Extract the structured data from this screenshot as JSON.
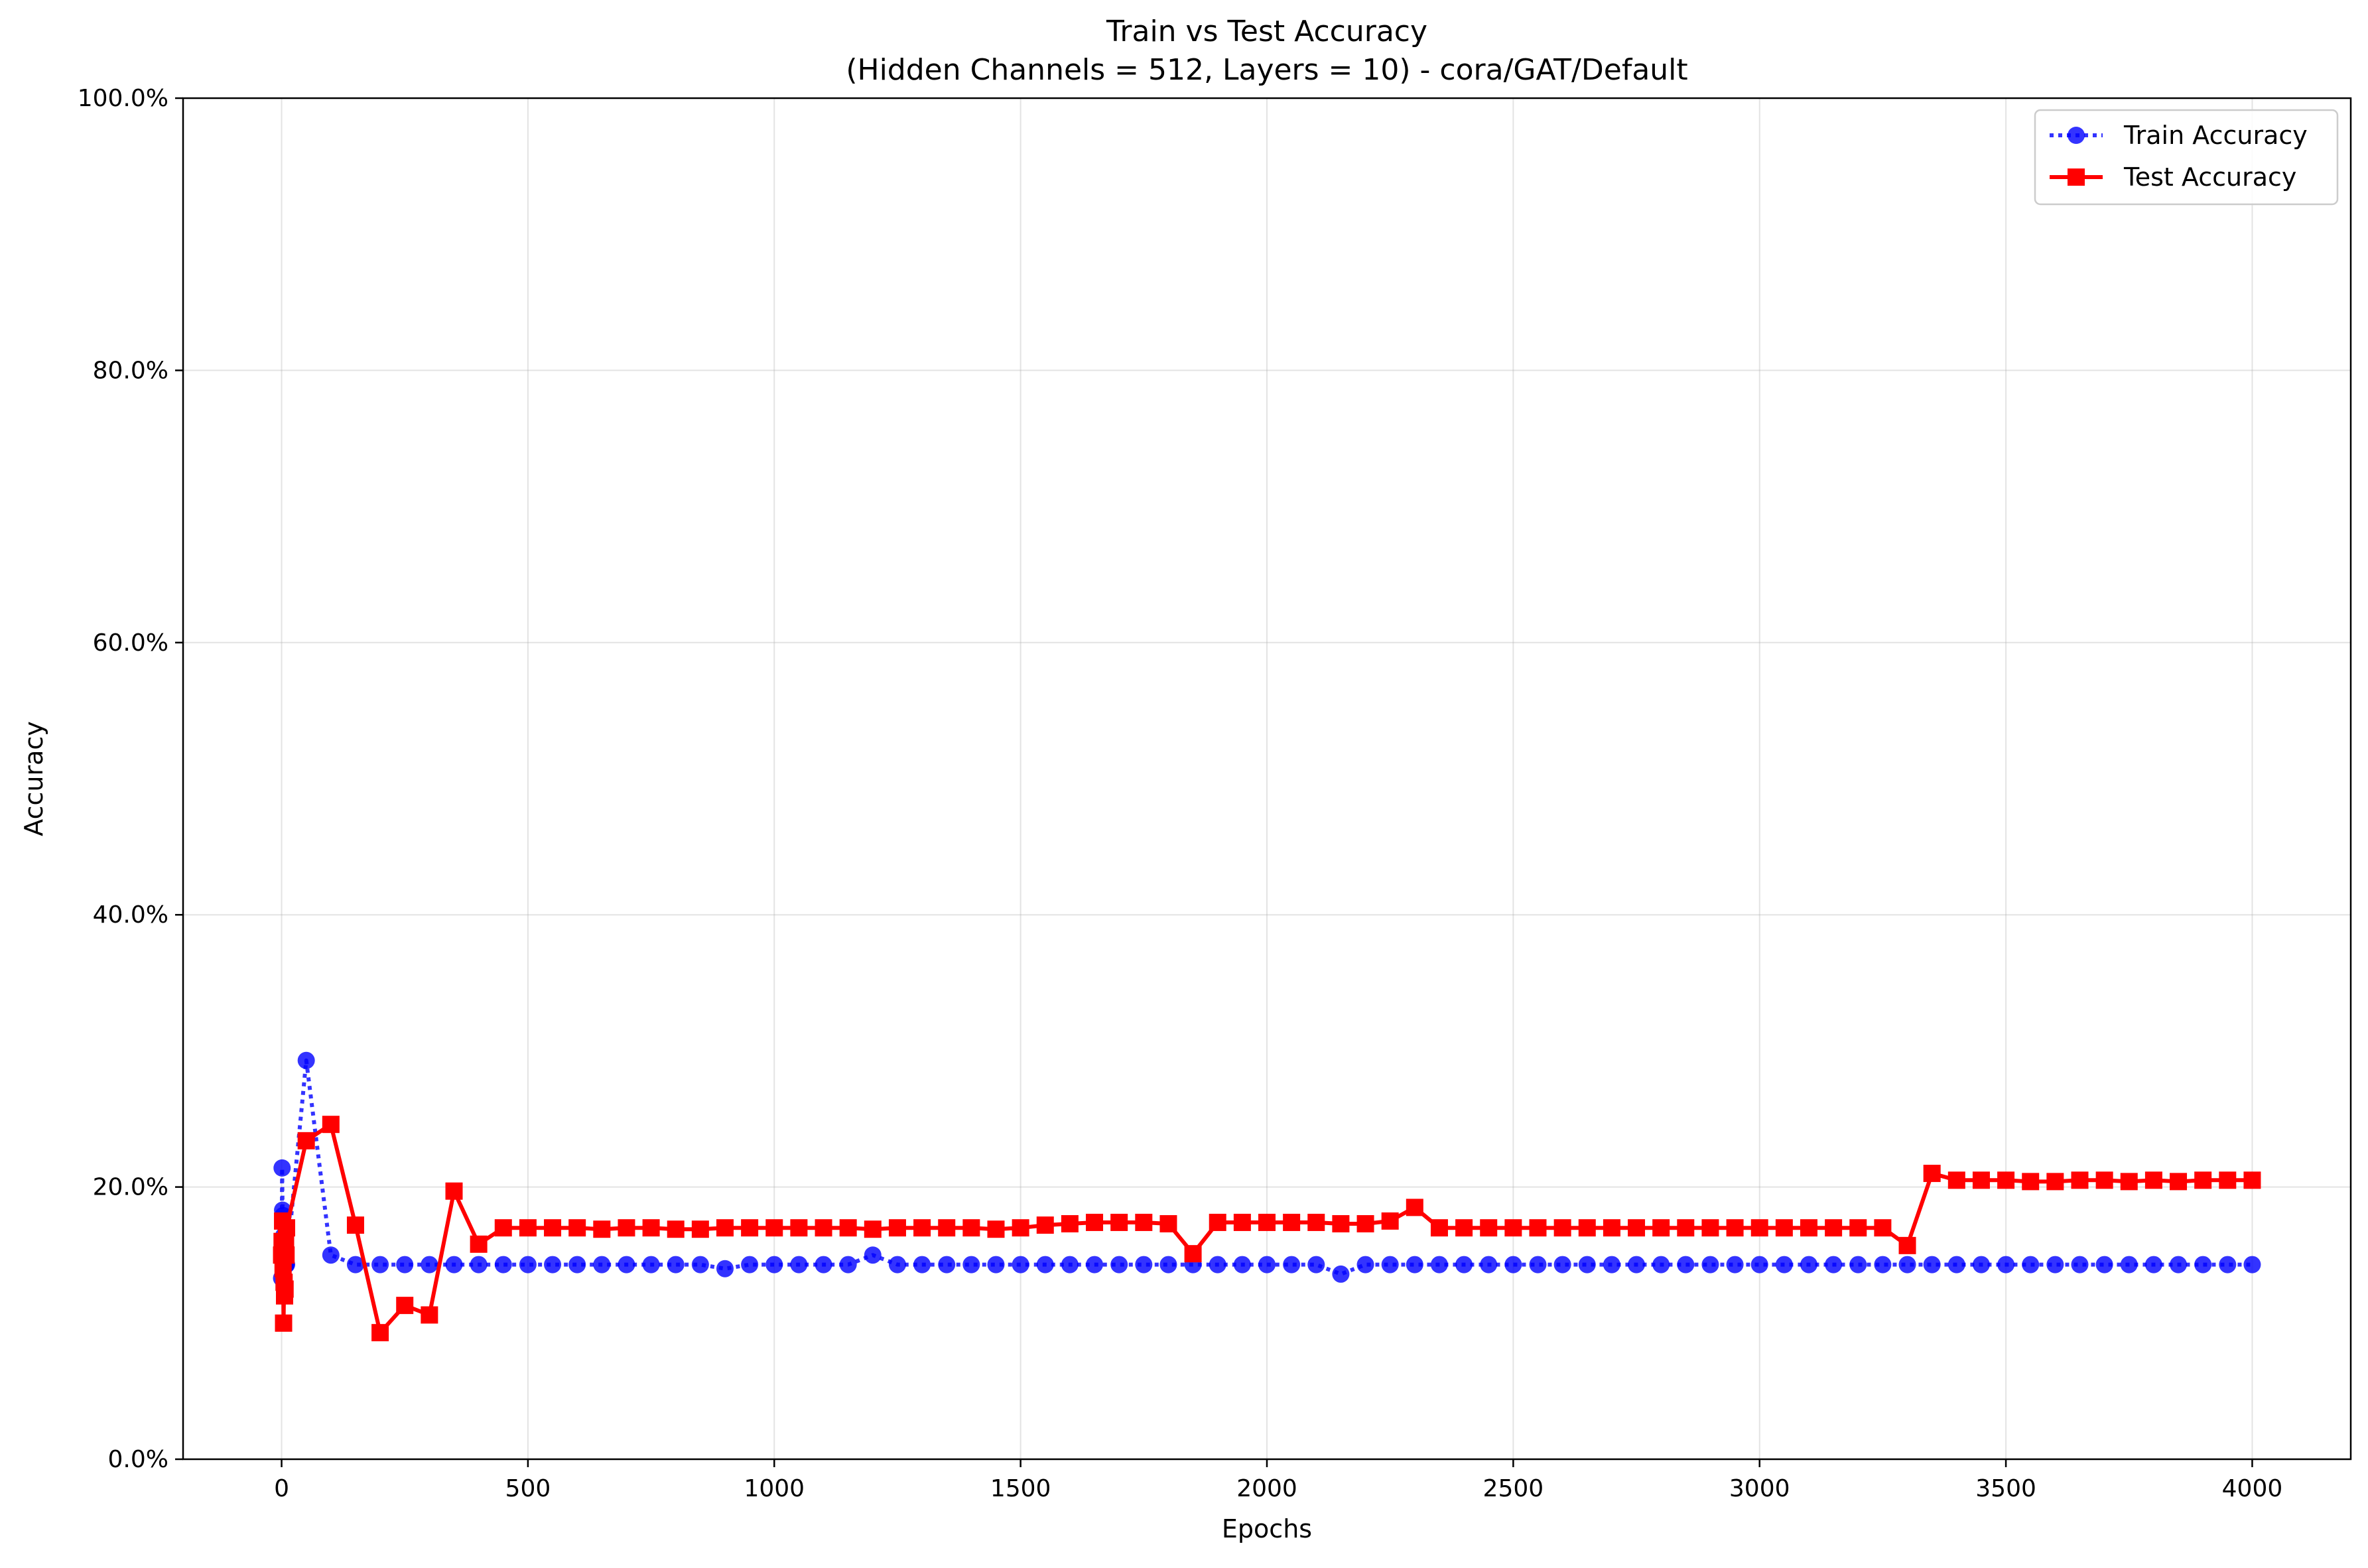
{
  "chart_data": {
    "type": "line",
    "title": "Train vs Test Accuracy",
    "subtitle": "(Hidden Channels = 512, Layers = 10) - cora/GAT/Default",
    "xlabel": "Epochs",
    "ylabel": "Accuracy",
    "xlim": [
      -200,
      4200
    ],
    "ylim": [
      0,
      1
    ],
    "x_ticks": [
      0,
      500,
      1000,
      1500,
      2000,
      2500,
      3000,
      3500,
      4000
    ],
    "x_tick_labels": [
      "0",
      "500",
      "1000",
      "1500",
      "2000",
      "2500",
      "3000",
      "3500",
      "4000"
    ],
    "y_ticks": [
      0,
      0.2,
      0.4,
      0.6,
      0.8,
      1.0
    ],
    "y_tick_labels": [
      "0.0%",
      "20.0%",
      "40.0%",
      "60.0%",
      "80.0%",
      "100.0%"
    ],
    "grid": true,
    "legend_position": "top-right",
    "series": [
      {
        "name": "Train Accuracy",
        "color": "#0000ff",
        "line_style": "dotted",
        "marker": "circle",
        "x": [
          0,
          1,
          2,
          3,
          4,
          5,
          6,
          7,
          8,
          9,
          10,
          50,
          100,
          150,
          200,
          250,
          300,
          350,
          400,
          450,
          500,
          550,
          600,
          650,
          700,
          750,
          800,
          850,
          900,
          950,
          1000,
          1050,
          1100,
          1150,
          1200,
          1250,
          1300,
          1350,
          1400,
          1450,
          1500,
          1550,
          1600,
          1650,
          1700,
          1750,
          1800,
          1850,
          1900,
          1950,
          2000,
          2050,
          2100,
          2150,
          2200,
          2250,
          2300,
          2350,
          2400,
          2450,
          2500,
          2550,
          2600,
          2650,
          2700,
          2750,
          2800,
          2850,
          2900,
          2950,
          3000,
          3050,
          3100,
          3150,
          3200,
          3250,
          3300,
          3350,
          3400,
          3450,
          3500,
          3550,
          3600,
          3650,
          3700,
          3750,
          3800,
          3850,
          3900,
          3950,
          4000
        ],
        "y": [
          0.133,
          0.214,
          0.183,
          0.179,
          0.164,
          0.15,
          0.143,
          0.143,
          0.143,
          0.143,
          0.143,
          0.293,
          0.15,
          0.143,
          0.143,
          0.143,
          0.143,
          0.143,
          0.143,
          0.143,
          0.143,
          0.143,
          0.143,
          0.143,
          0.143,
          0.143,
          0.143,
          0.143,
          0.14,
          0.143,
          0.143,
          0.143,
          0.143,
          0.143,
          0.15,
          0.143,
          0.143,
          0.143,
          0.143,
          0.143,
          0.143,
          0.143,
          0.143,
          0.143,
          0.143,
          0.143,
          0.143,
          0.143,
          0.143,
          0.143,
          0.143,
          0.143,
          0.143,
          0.136,
          0.143,
          0.143,
          0.143,
          0.143,
          0.143,
          0.143,
          0.143,
          0.143,
          0.143,
          0.143,
          0.143,
          0.143,
          0.143,
          0.143,
          0.143,
          0.143,
          0.143,
          0.143,
          0.143,
          0.143,
          0.143,
          0.143,
          0.143,
          0.143,
          0.143,
          0.143,
          0.143,
          0.143,
          0.143,
          0.143,
          0.143,
          0.143,
          0.143,
          0.143,
          0.143,
          0.143,
          0.143
        ]
      },
      {
        "name": "Test Accuracy",
        "color": "#ff0000",
        "line_style": "solid",
        "marker": "square",
        "x": [
          0,
          1,
          2,
          3,
          4,
          5,
          6,
          7,
          8,
          9,
          10,
          50,
          100,
          150,
          200,
          250,
          300,
          350,
          400,
          450,
          500,
          550,
          600,
          650,
          700,
          750,
          800,
          850,
          900,
          950,
          1000,
          1050,
          1100,
          1150,
          1200,
          1250,
          1300,
          1350,
          1400,
          1450,
          1500,
          1550,
          1600,
          1650,
          1700,
          1750,
          1800,
          1850,
          1900,
          1950,
          2000,
          2050,
          2100,
          2150,
          2200,
          2250,
          2300,
          2350,
          2400,
          2450,
          2500,
          2550,
          2600,
          2650,
          2700,
          2750,
          2800,
          2850,
          2900,
          2950,
          3000,
          3050,
          3100,
          3150,
          3200,
          3250,
          3300,
          3350,
          3400,
          3450,
          3500,
          3550,
          3600,
          3650,
          3700,
          3750,
          3800,
          3850,
          3900,
          3950,
          4000
        ],
        "y": [
          0.15,
          0.16,
          0.175,
          0.14,
          0.1,
          0.13,
          0.12,
          0.125,
          0.16,
          0.15,
          0.17,
          0.234,
          0.246,
          0.172,
          0.093,
          0.113,
          0.106,
          0.197,
          0.158,
          0.17,
          0.17,
          0.17,
          0.17,
          0.169,
          0.17,
          0.17,
          0.169,
          0.169,
          0.17,
          0.17,
          0.17,
          0.17,
          0.17,
          0.17,
          0.169,
          0.17,
          0.17,
          0.17,
          0.17,
          0.169,
          0.17,
          0.172,
          0.173,
          0.174,
          0.174,
          0.174,
          0.173,
          0.151,
          0.174,
          0.174,
          0.174,
          0.174,
          0.174,
          0.173,
          0.173,
          0.175,
          0.185,
          0.17,
          0.17,
          0.17,
          0.17,
          0.17,
          0.17,
          0.17,
          0.17,
          0.17,
          0.17,
          0.17,
          0.17,
          0.17,
          0.17,
          0.17,
          0.17,
          0.17,
          0.17,
          0.17,
          0.157,
          0.21,
          0.205,
          0.205,
          0.205,
          0.204,
          0.204,
          0.205,
          0.205,
          0.204,
          0.205,
          0.204,
          0.205,
          0.205,
          0.205
        ]
      }
    ]
  }
}
